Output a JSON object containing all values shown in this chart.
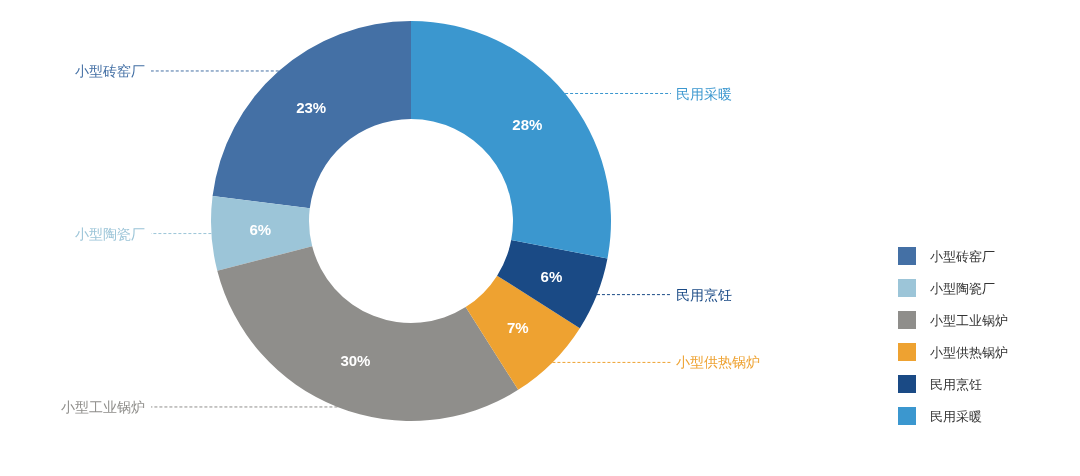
{
  "chart_data": {
    "type": "donut",
    "categories": [
      "小型砖窑厂",
      "小型陶瓷厂",
      "小型工业锅炉",
      "小型供热锅炉",
      "民用烹饪",
      "民用采暖"
    ],
    "values": [
      23,
      6,
      30,
      7,
      6,
      28
    ],
    "colors": [
      "#4470a5",
      "#9cc5d8",
      "#8f8e8b",
      "#eea231",
      "#1a4a85",
      "#3b97cf"
    ],
    "value_labels": [
      "23%",
      "6%",
      "30%",
      "7%",
      "6%",
      "28%"
    ],
    "legend": "right"
  }
}
